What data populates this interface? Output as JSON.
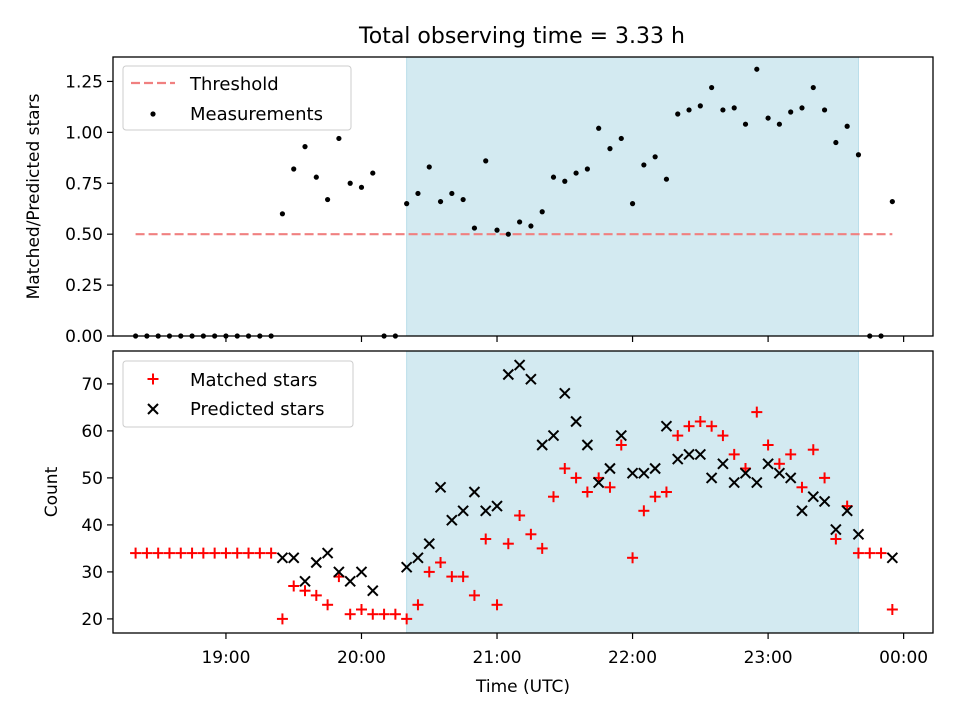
{
  "chart_data": [
    {
      "type": "scatter",
      "title": "Total observing time = 3.33 h",
      "xlabel": "",
      "ylabel": "Matched/Predicted stars",
      "xlim": [
        "18:10",
        "00:13"
      ],
      "ylim": [
        0,
        1.37
      ],
      "x_ticks": [
        "19:00",
        "20:00",
        "21:00",
        "22:00",
        "23:00",
        "00:00"
      ],
      "y_ticks": [
        "0.00",
        "0.25",
        "0.50",
        "0.75",
        "1.00",
        "1.25"
      ],
      "grid": false,
      "legend_position": "top-left",
      "shaded_span": [
        "20:20",
        "23:40"
      ],
      "shade_color": "#d3eaf1",
      "threshold": {
        "name": "Threshold",
        "value": 0.5,
        "x_range": [
          "18:20",
          "23:55"
        ],
        "color": "#f08080"
      },
      "series": [
        {
          "name": "Measurements",
          "color": "#000000",
          "x": [
            "18:20",
            "18:25",
            "18:30",
            "18:35",
            "18:40",
            "18:45",
            "18:50",
            "18:55",
            "19:00",
            "19:05",
            "19:10",
            "19:15",
            "19:20",
            "19:25",
            "19:30",
            "19:35",
            "19:40",
            "19:45",
            "19:50",
            "19:55",
            "20:00",
            "20:05",
            "20:10",
            "20:15",
            "20:20",
            "20:25",
            "20:30",
            "20:35",
            "20:40",
            "20:45",
            "20:50",
            "20:55",
            "21:00",
            "21:05",
            "21:10",
            "21:15",
            "21:20",
            "21:25",
            "21:30",
            "21:35",
            "21:40",
            "21:45",
            "21:50",
            "21:55",
            "22:00",
            "22:05",
            "22:10",
            "22:15",
            "22:20",
            "22:25",
            "22:30",
            "22:35",
            "22:40",
            "22:45",
            "22:50",
            "22:55",
            "23:00",
            "23:05",
            "23:10",
            "23:15",
            "23:20",
            "23:25",
            "23:30",
            "23:35",
            "23:40",
            "23:45",
            "23:50",
            "23:55"
          ],
          "y": [
            0,
            0,
            0,
            0,
            0,
            0,
            0,
            0,
            0,
            0,
            0,
            0,
            0,
            0.6,
            0.82,
            0.93,
            0.78,
            0.67,
            0.97,
            0.75,
            0.73,
            0.8,
            0,
            0,
            0.65,
            0.7,
            0.83,
            0.66,
            0.7,
            0.67,
            0.53,
            0.86,
            0.52,
            0.5,
            0.56,
            0.54,
            0.61,
            0.78,
            0.76,
            0.8,
            0.82,
            1.02,
            0.92,
            0.97,
            0.65,
            0.84,
            0.88,
            0.77,
            1.09,
            1.11,
            1.13,
            1.22,
            1.11,
            1.12,
            1.04,
            1.31,
            1.07,
            1.04,
            1.1,
            1.12,
            1.22,
            1.11,
            0.95,
            1.03,
            0.89,
            0,
            0,
            0.66
          ]
        }
      ]
    },
    {
      "type": "scatter",
      "title": "",
      "xlabel": "Time (UTC)",
      "ylabel": "Count",
      "xlim": [
        "18:10",
        "00:13"
      ],
      "ylim": [
        17,
        77
      ],
      "x_ticks": [
        "19:00",
        "20:00",
        "21:00",
        "22:00",
        "23:00",
        "00:00"
      ],
      "y_ticks": [
        "20",
        "30",
        "40",
        "50",
        "60",
        "70"
      ],
      "grid": false,
      "legend_position": "top-left",
      "shaded_span": [
        "20:20",
        "23:40"
      ],
      "shade_color": "#d3eaf1",
      "series": [
        {
          "name": "Matched stars",
          "marker": "plus",
          "color": "#ff0000",
          "x": [
            "18:20",
            "18:25",
            "18:30",
            "18:35",
            "18:40",
            "18:45",
            "18:50",
            "18:55",
            "19:00",
            "19:05",
            "19:10",
            "19:15",
            "19:20",
            "19:25",
            "19:30",
            "19:35",
            "19:40",
            "19:45",
            "19:50",
            "19:55",
            "20:00",
            "20:05",
            "20:10",
            "20:15",
            "20:20",
            "20:25",
            "20:30",
            "20:35",
            "20:40",
            "20:45",
            "20:50",
            "20:55",
            "21:00",
            "21:05",
            "21:10",
            "21:15",
            "21:20",
            "21:25",
            "21:30",
            "21:35",
            "21:40",
            "21:45",
            "21:50",
            "21:55",
            "22:00",
            "22:05",
            "22:10",
            "22:15",
            "22:20",
            "22:25",
            "22:30",
            "22:35",
            "22:40",
            "22:45",
            "22:50",
            "22:55",
            "23:00",
            "23:05",
            "23:10",
            "23:15",
            "23:20",
            "23:25",
            "23:30",
            "23:35",
            "23:40",
            "23:45",
            "23:50",
            "23:55"
          ],
          "y": [
            34,
            34,
            34,
            34,
            34,
            34,
            34,
            34,
            34,
            34,
            34,
            34,
            34,
            20,
            27,
            26,
            25,
            23,
            29,
            21,
            22,
            21,
            21,
            21,
            20,
            23,
            30,
            32,
            29,
            29,
            25,
            37,
            23,
            36,
            42,
            38,
            35,
            46,
            52,
            50,
            47,
            50,
            48,
            57,
            33,
            43,
            46,
            47,
            59,
            61,
            62,
            61,
            59,
            55,
            52,
            64,
            57,
            53,
            55,
            48,
            56,
            50,
            37,
            44,
            34,
            34,
            34,
            22
          ]
        },
        {
          "name": "Predicted stars",
          "marker": "x",
          "color": "#000000",
          "x": [
            "19:25",
            "19:30",
            "19:35",
            "19:40",
            "19:45",
            "19:50",
            "19:55",
            "20:00",
            "20:05",
            "20:20",
            "20:25",
            "20:30",
            "20:35",
            "20:40",
            "20:45",
            "20:50",
            "20:55",
            "21:00",
            "21:05",
            "21:10",
            "21:15",
            "21:20",
            "21:25",
            "21:30",
            "21:35",
            "21:40",
            "21:45",
            "21:50",
            "21:55",
            "22:00",
            "22:05",
            "22:10",
            "22:15",
            "22:20",
            "22:25",
            "22:30",
            "22:35",
            "22:40",
            "22:45",
            "22:50",
            "22:55",
            "23:00",
            "23:05",
            "23:10",
            "23:15",
            "23:20",
            "23:25",
            "23:30",
            "23:35",
            "23:40",
            "23:55"
          ],
          "y": [
            33,
            33,
            28,
            32,
            34,
            30,
            28,
            30,
            26,
            31,
            33,
            36,
            48,
            41,
            43,
            47,
            43,
            44,
            72,
            74,
            71,
            57,
            59,
            68,
            62,
            57,
            49,
            52,
            59,
            51,
            51,
            52,
            61,
            54,
            55,
            55,
            50,
            53,
            49,
            51,
            49,
            53,
            51,
            50,
            43,
            46,
            45,
            39,
            43,
            38,
            33
          ]
        }
      ]
    }
  ]
}
